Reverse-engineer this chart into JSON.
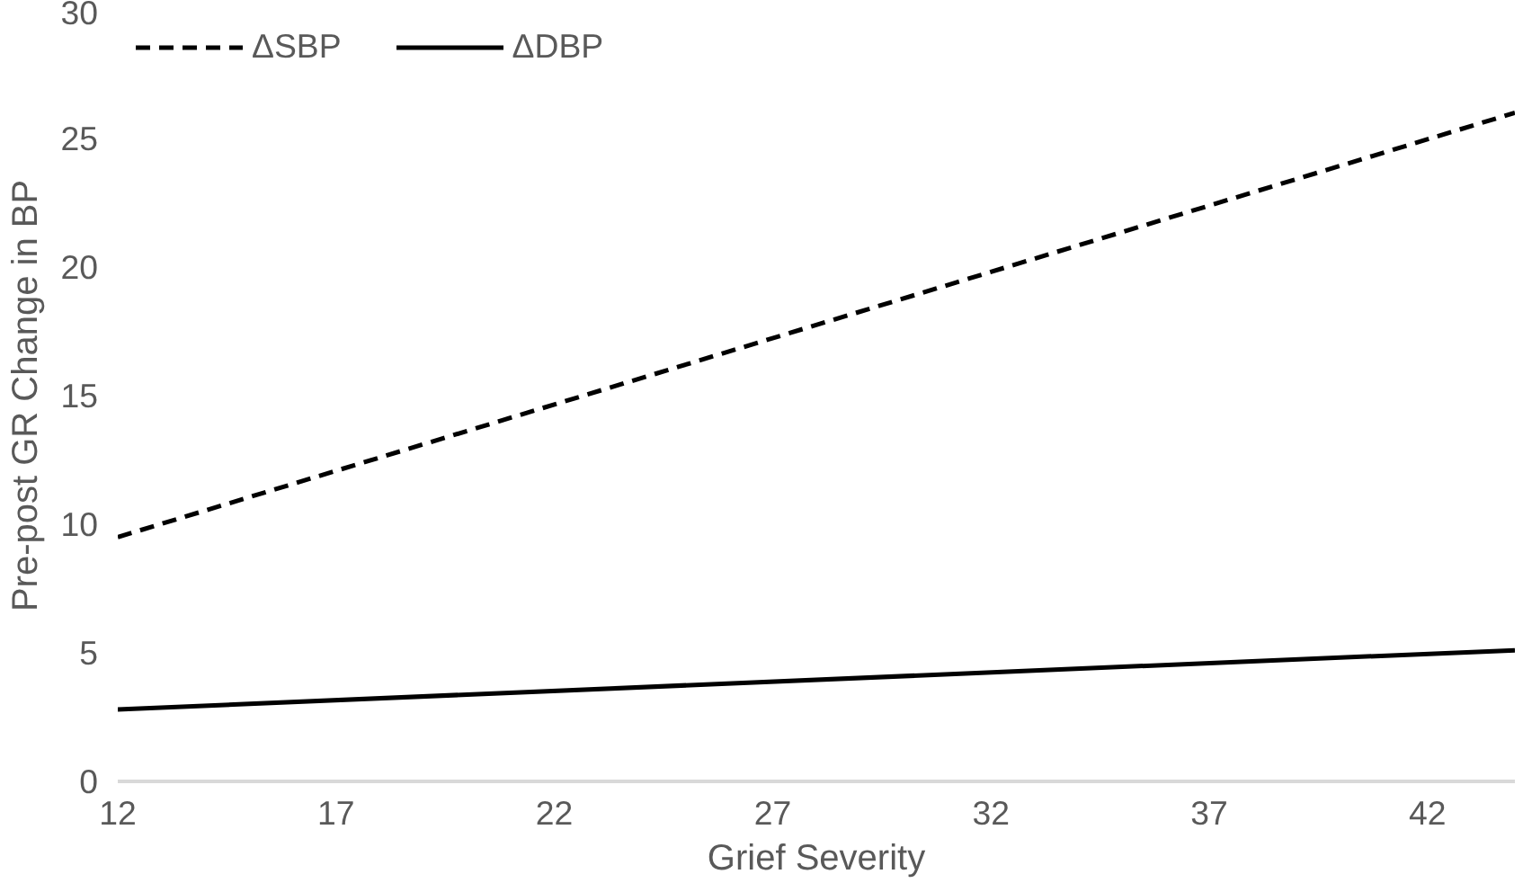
{
  "chart_data": {
    "type": "line",
    "xlabel": "Grief Severity",
    "ylabel": "Pre-post GR Change in BP",
    "xlim": [
      12,
      44
    ],
    "xticks": [
      12,
      17,
      22,
      27,
      32,
      37,
      42
    ],
    "ylim": [
      0,
      30
    ],
    "yticks": [
      0,
      5,
      10,
      15,
      20,
      25,
      30
    ],
    "x": [
      12,
      44
    ],
    "grid": false,
    "legend": "top left",
    "marker": "none",
    "series": [
      {
        "name": "ΔSBP",
        "color": "#000000",
        "line_style": "dashed",
        "values": [
          9.5,
          26
        ]
      },
      {
        "name": "ΔDBP",
        "color": "#000000",
        "line_style": "solid",
        "values": [
          2.8,
          5.1
        ]
      }
    ]
  }
}
